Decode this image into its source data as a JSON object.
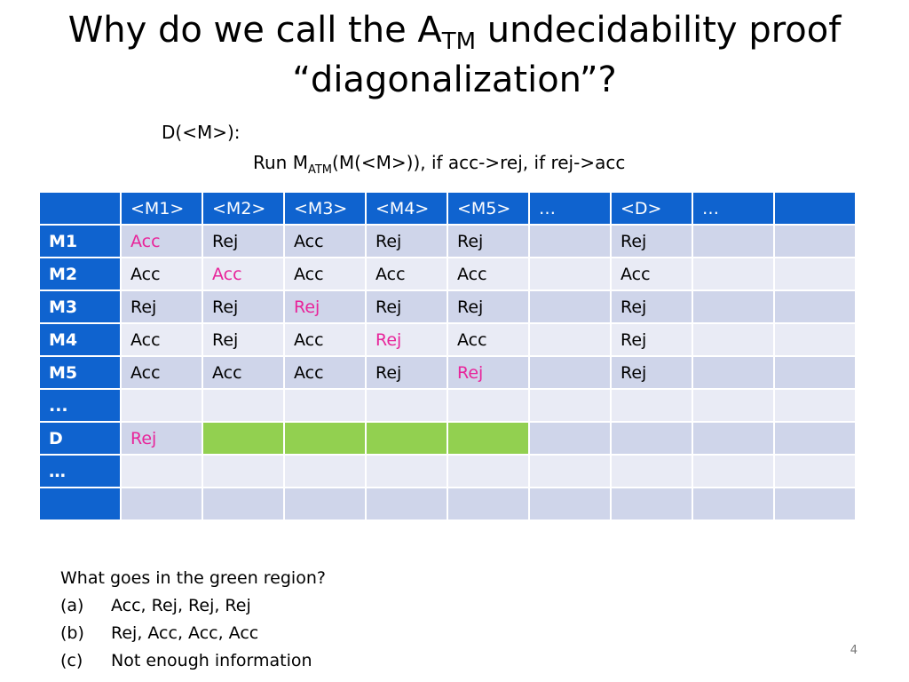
{
  "title": {
    "line1_pre": "Why do we call the A",
    "line1_sub": "TM",
    "line1_post": " undecidability proof",
    "line2": "“diagonalization”?"
  },
  "definition": {
    "line1": "D(<M>):",
    "line2_pre": "Run M",
    "line2_sub": "ATM",
    "line2_post": "(M(<M>)), if acc->rej, if rej->acc"
  },
  "table": {
    "columns": [
      "",
      "<M1>",
      "<M2>",
      "<M3>",
      "<M4>",
      "<M5>",
      "…",
      "<D>",
      "…",
      ""
    ],
    "rows": [
      {
        "label": "M1",
        "cells": [
          "Acc",
          "Rej",
          "Acc",
          "Rej",
          "Rej",
          "",
          "Rej",
          "",
          ""
        ],
        "diag": 0
      },
      {
        "label": "M2",
        "cells": [
          "Acc",
          "Acc",
          "Acc",
          "Acc",
          "Acc",
          "",
          "Acc",
          "",
          ""
        ],
        "diag": 1
      },
      {
        "label": "M3",
        "cells": [
          "Rej",
          "Rej",
          "Rej",
          "Rej",
          "Rej",
          "",
          "Rej",
          "",
          ""
        ],
        "diag": 2
      },
      {
        "label": "M4",
        "cells": [
          "Acc",
          "Rej",
          "Acc",
          "Rej",
          "Acc",
          "",
          "Rej",
          "",
          ""
        ],
        "diag": 3
      },
      {
        "label": "M5",
        "cells": [
          "Acc",
          "Acc",
          "Acc",
          "Rej",
          "Rej",
          "",
          "Rej",
          "",
          ""
        ],
        "diag": 4
      },
      {
        "label": "...",
        "cells": [
          "",
          "",
          "",
          "",
          "",
          "",
          "",
          "",
          ""
        ],
        "diag": -1
      },
      {
        "label": "D",
        "cells": [
          "Rej",
          "",
          "",
          "",
          "",
          "",
          "",
          "",
          ""
        ],
        "diag": 0,
        "green_cols": [
          1,
          2,
          3,
          4
        ]
      },
      {
        "label": "…",
        "cells": [
          "",
          "",
          "",
          "",
          "",
          "",
          "",
          "",
          ""
        ],
        "diag": -1
      },
      {
        "label": "",
        "cells": [
          "",
          "",
          "",
          "",
          "",
          "",
          "",
          "",
          ""
        ],
        "diag": -1
      }
    ]
  },
  "question": {
    "prompt": "What goes in the green region?",
    "options": [
      {
        "label": "(a)",
        "text": "Acc, Rej, Rej, Rej"
      },
      {
        "label": "(b)",
        "text": "Rej, Acc, Acc, Acc"
      },
      {
        "label": "(c)",
        "text": "Not enough information"
      }
    ]
  },
  "page_number": "4",
  "colors": {
    "header_blue": "#0f63cf",
    "row_dark": "#cfd5ea",
    "row_light": "#e9ebf5",
    "highlight_pink": "#e8249a",
    "green_region": "#92d050"
  }
}
